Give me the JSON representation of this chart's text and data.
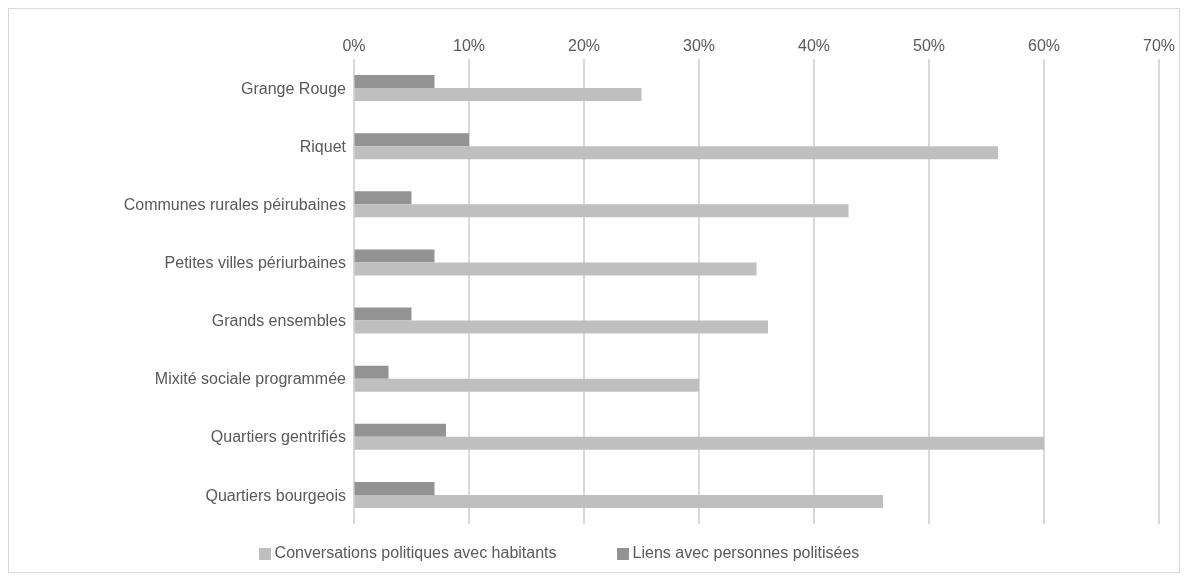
{
  "chart_data": {
    "type": "bar",
    "orientation": "horizontal",
    "categories": [
      "Grange Rouge",
      "Riquet",
      "Communes rurales péirubaines",
      "Petites villes périurbaines",
      "Grands ensembles",
      "Mixité sociale programmée",
      "Quartiers gentrifiés",
      "Quartiers bourgeois"
    ],
    "series": [
      {
        "name": "Liens avec personnes politisées",
        "color": "#939393",
        "values": [
          7,
          10,
          5,
          7,
          5,
          3,
          8,
          7
        ]
      },
      {
        "name": "Conversations politiques avec habitants",
        "color": "#bfbfbf",
        "values": [
          25,
          56,
          43,
          35,
          36,
          30,
          60,
          46
        ]
      }
    ],
    "xlim": [
      0,
      70
    ],
    "xticks": [
      {
        "value": 0,
        "label": "0%"
      },
      {
        "value": 10,
        "label": "10%"
      },
      {
        "value": 20,
        "label": "20%"
      },
      {
        "value": 30,
        "label": "30%"
      },
      {
        "value": 40,
        "label": "40%"
      },
      {
        "value": 50,
        "label": "50%"
      },
      {
        "value": 60,
        "label": "60%"
      },
      {
        "value": 70,
        "label": "70%"
      }
    ],
    "grid": "x",
    "legend": "bottom"
  }
}
